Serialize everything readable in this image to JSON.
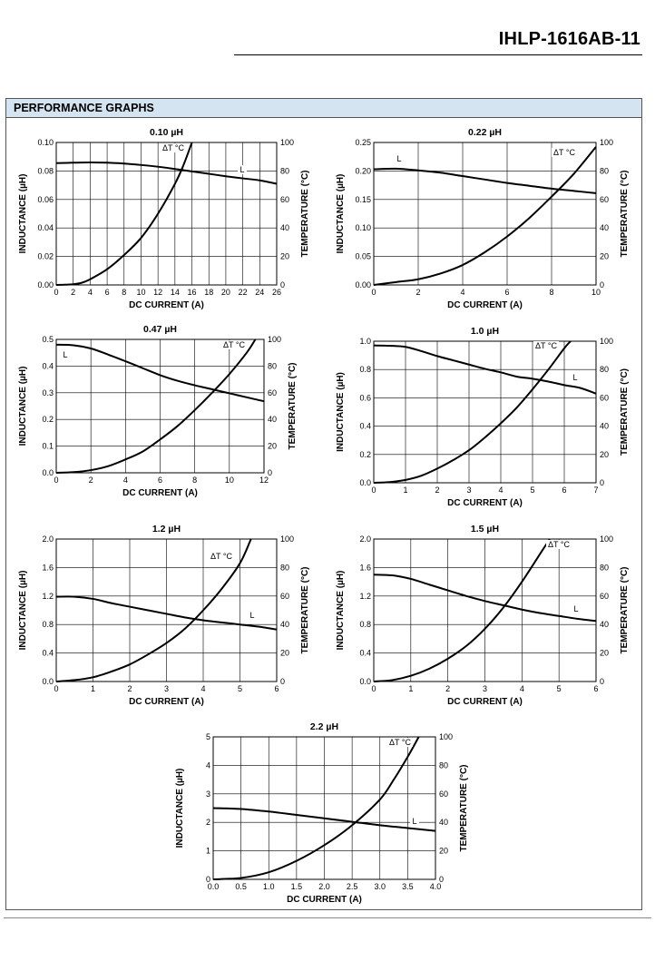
{
  "header": {
    "part_number": "IHLP-1616AB-11"
  },
  "section": {
    "title": "PERFORMANCE GRAPHS"
  },
  "chart_data": [
    {
      "type": "line",
      "title": "0.10 µH",
      "xlabel": "DC CURRENT (A)",
      "ylabel": "INDUCTANCE (µH)",
      "y2label": "TEMPERATURE (°C)",
      "xlim": [
        0,
        26
      ],
      "ylim": [
        0,
        0.1
      ],
      "y2lim": [
        0,
        100
      ],
      "xticks": [
        "0",
        "2",
        "4",
        "6",
        "8",
        "10",
        "12",
        "14",
        "16",
        "18",
        "20",
        "22",
        "24",
        "26"
      ],
      "yticks": [
        "0.00",
        "0.02",
        "0.04",
        "0.06",
        "0.08",
        "0.10"
      ],
      "y2ticks": [
        "0",
        "20",
        "40",
        "60",
        "80",
        "100"
      ],
      "series": [
        {
          "name": "L",
          "axis": "left",
          "x": [
            0,
            2,
            4,
            6,
            8,
            10,
            12,
            14,
            16,
            18,
            20,
            22,
            24,
            26
          ],
          "y": [
            0.0855,
            0.0858,
            0.086,
            0.0858,
            0.0852,
            0.0842,
            0.083,
            0.0814,
            0.0797,
            0.078,
            0.0763,
            0.0748,
            0.0734,
            0.071
          ]
        },
        {
          "name": "ΔT °C",
          "axis": "right",
          "x": [
            0,
            2,
            3,
            4,
            6,
            8,
            10,
            12,
            14,
            15,
            16
          ],
          "y": [
            0,
            0.5,
            1.5,
            4,
            11,
            21,
            33,
            50,
            71,
            84,
            100
          ]
        }
      ]
    },
    {
      "type": "line",
      "title": "0.22 µH",
      "xlabel": "DC CURRENT (A)",
      "ylabel": "INDUCTANCE (µH)",
      "y2label": "TEMPERATURE (°C)",
      "xlim": [
        0,
        10
      ],
      "ylim": [
        0,
        0.25
      ],
      "y2lim": [
        0,
        100
      ],
      "xticks": [
        "0",
        "2",
        "4",
        "6",
        "8",
        "10"
      ],
      "yticks": [
        "0.00",
        "0.05",
        "0.10",
        "0.15",
        "0.20",
        "0.25"
      ],
      "y2ticks": [
        "0",
        "20",
        "40",
        "60",
        "80",
        "100"
      ],
      "series": [
        {
          "name": "L",
          "axis": "left",
          "x": [
            0,
            1,
            2,
            3,
            4,
            5,
            6,
            7,
            8,
            9,
            10
          ],
          "y": [
            0.203,
            0.204,
            0.201,
            0.197,
            0.191,
            0.185,
            0.179,
            0.174,
            0.169,
            0.165,
            0.161
          ]
        },
        {
          "name": "ΔT °C",
          "axis": "right",
          "x": [
            0,
            1,
            2,
            3,
            4,
            5,
            6,
            7,
            8,
            9,
            10
          ],
          "y": [
            0,
            2,
            4,
            8,
            14,
            23,
            34,
            47,
            62,
            78,
            97
          ]
        }
      ]
    },
    {
      "type": "line",
      "title": "0.47 µH",
      "xlabel": "DC CURRENT (A)",
      "ylabel": "INDUCTANCE (µH)",
      "y2label": "TEMPERATURE (°C)",
      "xlim": [
        0,
        12
      ],
      "ylim": [
        0,
        0.5
      ],
      "y2lim": [
        0,
        100
      ],
      "xticks": [
        "0",
        "2",
        "4",
        "6",
        "8",
        "10",
        "12"
      ],
      "yticks": [
        "0.0",
        "0.1",
        "0.2",
        "0.3",
        "0.4",
        "0.5"
      ],
      "y2ticks": [
        "0",
        "20",
        "40",
        "60",
        "80",
        "100"
      ],
      "series": [
        {
          "name": "L",
          "axis": "left",
          "x": [
            0,
            1,
            2,
            3,
            4,
            5,
            6,
            7,
            8,
            9,
            10,
            11,
            12
          ],
          "y": [
            0.48,
            0.478,
            0.466,
            0.443,
            0.418,
            0.392,
            0.366,
            0.345,
            0.328,
            0.313,
            0.298,
            0.283,
            0.268
          ]
        },
        {
          "name": "ΔT °C",
          "axis": "right",
          "x": [
            0,
            1,
            2,
            3,
            4,
            5,
            6,
            7,
            8,
            9,
            10,
            11,
            11.5
          ],
          "y": [
            0,
            0.5,
            2,
            5,
            10,
            16,
            25,
            35,
            47,
            60,
            74,
            90,
            100
          ]
        }
      ]
    },
    {
      "type": "line",
      "title": "1.0 µH",
      "xlabel": "DC CURRENT (A)",
      "ylabel": "INDUCTANCE (µH)",
      "y2label": "TEMPERATURE (°C)",
      "xlim": [
        0,
        7
      ],
      "ylim": [
        0,
        1.0
      ],
      "y2lim": [
        0,
        100
      ],
      "xticks": [
        "0",
        "1",
        "2",
        "3",
        "4",
        "5",
        "6",
        "7"
      ],
      "yticks": [
        "0.0",
        "0.2",
        "0.4",
        "0.6",
        "0.8",
        "1.0"
      ],
      "y2ticks": [
        "0",
        "20",
        "40",
        "60",
        "80",
        "100"
      ],
      "series": [
        {
          "name": "L",
          "axis": "left",
          "x": [
            0,
            0.5,
            1,
            1.5,
            2,
            2.5,
            3,
            3.5,
            4,
            4.5,
            5,
            5.5,
            6,
            6.5,
            7
          ],
          "y": [
            0.97,
            0.968,
            0.96,
            0.93,
            0.895,
            0.865,
            0.835,
            0.805,
            0.78,
            0.75,
            0.735,
            0.715,
            0.69,
            0.67,
            0.63
          ]
        },
        {
          "name": "ΔT °C",
          "axis": "right",
          "x": [
            0,
            0.5,
            1,
            1.5,
            2,
            2.5,
            3,
            3.5,
            4,
            4.5,
            5,
            5.5,
            6,
            6.2
          ],
          "y": [
            0,
            0.5,
            2,
            5,
            10,
            16,
            23,
            32,
            42,
            53,
            66,
            80,
            95,
            100
          ]
        }
      ]
    },
    {
      "type": "line",
      "title": "1.2 µH",
      "xlabel": "DC CURRENT (A)",
      "ylabel": "INDUCTANCE (µH)",
      "y2label": "TEMPERATURE (°C)",
      "xlim": [
        0,
        6
      ],
      "ylim": [
        0,
        2.0
      ],
      "y2lim": [
        0,
        100
      ],
      "xticks": [
        "0",
        "1",
        "2",
        "3",
        "4",
        "5",
        "6"
      ],
      "yticks": [
        "0.0",
        "0.4",
        "0.8",
        "1.2",
        "1.6",
        "2.0"
      ],
      "y2ticks": [
        "0",
        "20",
        "40",
        "60",
        "80",
        "100"
      ],
      "series": [
        {
          "name": "L",
          "axis": "left",
          "x": [
            0,
            0.5,
            1,
            1.5,
            2,
            2.5,
            3,
            3.5,
            4,
            4.5,
            5,
            5.5,
            6
          ],
          "y": [
            1.19,
            1.19,
            1.16,
            1.1,
            1.05,
            1.0,
            0.95,
            0.9,
            0.86,
            0.83,
            0.8,
            0.77,
            0.73
          ]
        },
        {
          "name": "ΔT °C",
          "axis": "right",
          "x": [
            0,
            0.5,
            1,
            1.5,
            2,
            2.5,
            3,
            3.5,
            4,
            4.5,
            5,
            5.3
          ],
          "y": [
            0,
            1,
            3,
            7,
            12,
            19,
            27,
            37,
            50,
            65,
            83,
            100
          ]
        }
      ]
    },
    {
      "type": "line",
      "title": "1.5 µH",
      "xlabel": "DC CURRENT (A)",
      "ylabel": "INDUCTANCE (µH)",
      "y2label": "TEMPERATURE (°C)",
      "xlim": [
        0,
        6
      ],
      "ylim": [
        0,
        2.0
      ],
      "y2lim": [
        0,
        100
      ],
      "xticks": [
        "0",
        "1",
        "2",
        "3",
        "4",
        "5",
        "6"
      ],
      "yticks": [
        "0.0",
        "0.4",
        "0.8",
        "1.2",
        "1.6",
        "2.0"
      ],
      "y2ticks": [
        "0",
        "20",
        "40",
        "60",
        "80",
        "100"
      ],
      "series": [
        {
          "name": "L",
          "axis": "left",
          "x": [
            0,
            0.5,
            1,
            1.5,
            2,
            2.5,
            3,
            3.5,
            4,
            4.5,
            5,
            5.5,
            6
          ],
          "y": [
            1.5,
            1.49,
            1.44,
            1.36,
            1.28,
            1.2,
            1.13,
            1.07,
            1.01,
            0.96,
            0.92,
            0.88,
            0.85
          ]
        },
        {
          "name": "ΔT °C",
          "axis": "right",
          "x": [
            0,
            0.5,
            1,
            1.5,
            2,
            2.5,
            3,
            3.5,
            4,
            4.5,
            4.75
          ],
          "y": [
            0,
            1,
            4,
            9,
            16,
            25,
            37,
            52,
            70,
            90,
            100
          ]
        }
      ]
    },
    {
      "type": "line",
      "title": "2.2 µH",
      "xlabel": "DC CURRENT (A)",
      "ylabel": "INDUCTANCE (µH)",
      "y2label": "TEMPERATURE (°C)",
      "xlim": [
        0,
        4.0
      ],
      "ylim": [
        0,
        5
      ],
      "y2lim": [
        0,
        100
      ],
      "xticks": [
        "0.0",
        "0.5",
        "1.0",
        "1.5",
        "2.0",
        "2.5",
        "3.0",
        "3.5",
        "4.0"
      ],
      "yticks": [
        "0",
        "1",
        "2",
        "3",
        "4",
        "5"
      ],
      "y2ticks": [
        "0",
        "20",
        "40",
        "60",
        "80",
        "100"
      ],
      "series": [
        {
          "name": "L",
          "axis": "left",
          "x": [
            0,
            0.5,
            1,
            1.5,
            2,
            2.5,
            3,
            3.5,
            4
          ],
          "y": [
            2.5,
            2.47,
            2.38,
            2.26,
            2.14,
            2.02,
            1.9,
            1.8,
            1.7
          ]
        },
        {
          "name": "ΔT °C",
          "axis": "right",
          "x": [
            0,
            0.5,
            1,
            1.5,
            2,
            2.5,
            3,
            3.25,
            3.5,
            3.7
          ],
          "y": [
            0,
            1,
            5,
            13,
            24,
            38,
            56,
            70,
            86,
            100
          ]
        }
      ]
    }
  ]
}
